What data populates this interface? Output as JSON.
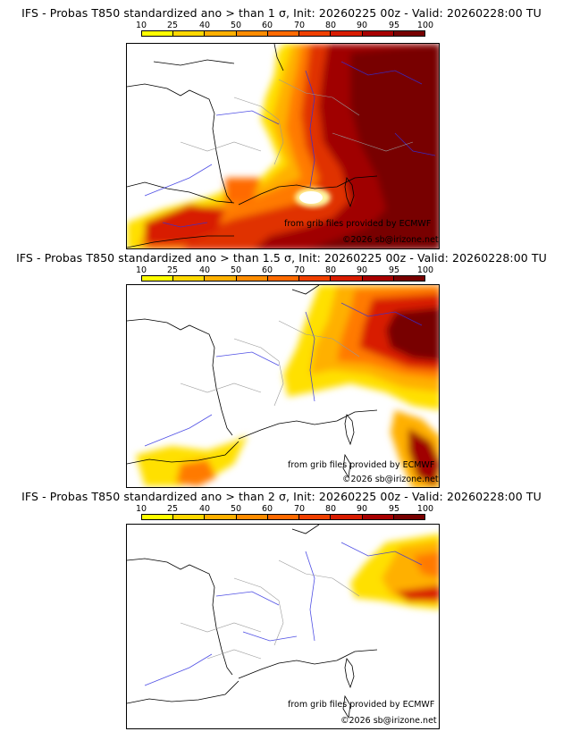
{
  "legend": {
    "ticks": [
      "10",
      "25",
      "40",
      "50",
      "60",
      "70",
      "80",
      "90",
      "95",
      "100"
    ],
    "colors": [
      "#ffff00",
      "#ffd800",
      "#ffb000",
      "#ff8c00",
      "#ff6a00",
      "#f04000",
      "#d81c00",
      "#a80000",
      "#780000"
    ]
  },
  "panels": [
    {
      "title": "IFS - Probas T850  standardized ano > than 1 σ, Init: 20260225 00z - Valid: 20260228:00 TU",
      "source": "from grib files provided by ECMWF",
      "copyright": "©2026 sb@irizone.net"
    },
    {
      "title": "IFS - Probas T850  standardized ano > than 1.5 σ, Init: 20260225 00z - Valid: 20260228:00 TU",
      "source": "from grib files provided by ECMWF",
      "copyright": "©2026 sb@irizone.net"
    },
    {
      "title": "IFS - Probas T850  standardized ano > than 2 σ, Init: 20260225 00z - Valid: 20260228:00 TU",
      "source": "from grib files provided by ECMWF",
      "copyright": "©2026 sb@irizone.net"
    }
  ]
}
